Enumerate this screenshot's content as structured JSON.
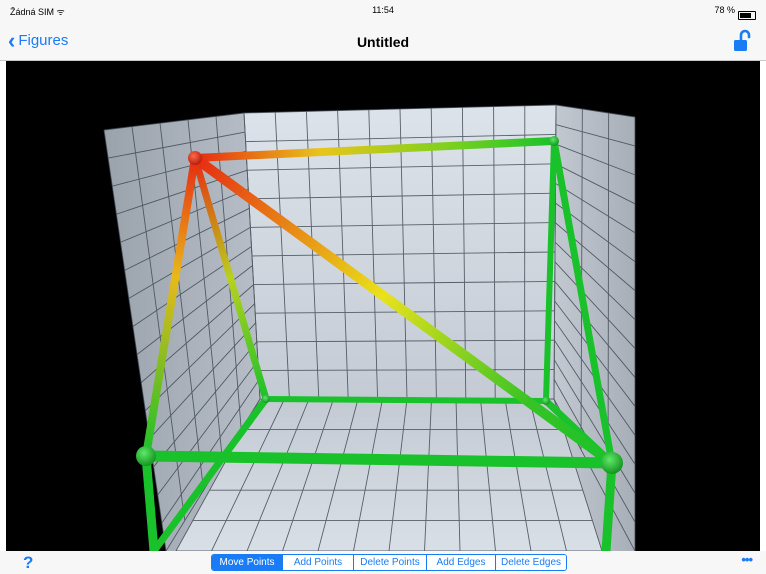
{
  "status_bar": {
    "carrier": "Žádná SIM",
    "time": "11:54",
    "battery": "78 %"
  },
  "nav": {
    "back_label": "Figures",
    "title": "Untitled",
    "lock_icon": "unlock-icon"
  },
  "toolbar": {
    "help_label": "?",
    "more_label": "•••",
    "modes": [
      {
        "label": "Move Points",
        "active": true
      },
      {
        "label": "Add Points",
        "active": false
      },
      {
        "label": "Delete Points",
        "active": false
      },
      {
        "label": "Add Edges",
        "active": false
      },
      {
        "label": "Delete Edges",
        "active": false
      }
    ]
  },
  "colors": {
    "accent": "#1a7cf5",
    "edge_green": "#19c22a",
    "edge_red": "#e62a12",
    "edge_yellow": "#e9e21a",
    "wall": "#c7ced8",
    "grid_line": "#414b55"
  }
}
